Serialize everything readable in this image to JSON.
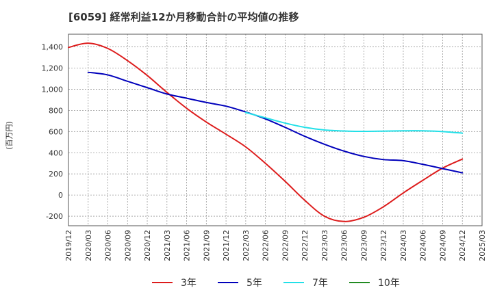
{
  "chart_data": {
    "type": "line",
    "title": "[6059]  経常利益12か月移動合計の平均値の推移",
    "ylabel": "(百万円)",
    "xlabel": "",
    "ylim": [
      -290,
      1520
    ],
    "yticks": [
      {
        "value": 1400,
        "label": "1,400"
      },
      {
        "value": 1200,
        "label": "1,200"
      },
      {
        "value": 1000,
        "label": "1,000"
      },
      {
        "value": 800,
        "label": "800"
      },
      {
        "value": 600,
        "label": "600"
      },
      {
        "value": 400,
        "label": "400"
      },
      {
        "value": 200,
        "label": "200"
      },
      {
        "value": 0,
        "label": "0"
      },
      {
        "value": -200,
        "label": "-200"
      }
    ],
    "xticks": [
      "2019/12",
      "2020/03",
      "2020/06",
      "2020/09",
      "2020/12",
      "2021/03",
      "2021/06",
      "2021/09",
      "2021/12",
      "2022/03",
      "2022/06",
      "2022/09",
      "2022/12",
      "2023/03",
      "2023/06",
      "2023/09",
      "2023/12",
      "2024/03",
      "2024/06",
      "2024/09",
      "2024/12",
      "2025/03"
    ],
    "grid": true,
    "legend_position": "bottom",
    "series": [
      {
        "name": "3年",
        "color": "#dd1c1c",
        "x": [
          "2019/12",
          "2020/03",
          "2020/06",
          "2020/09",
          "2020/12",
          "2021/03",
          "2021/06",
          "2021/09",
          "2021/12",
          "2022/03",
          "2022/06",
          "2022/09",
          "2022/12",
          "2023/03",
          "2023/06",
          "2023/09",
          "2023/12",
          "2024/03",
          "2024/06",
          "2024/09",
          "2024/12"
        ],
        "values": [
          1395,
          1435,
          1385,
          1270,
          1130,
          970,
          820,
          690,
          575,
          455,
          300,
          130,
          -50,
          -200,
          -250,
          -210,
          -110,
          20,
          140,
          255,
          340
        ]
      },
      {
        "name": "5年",
        "color": "#0000bb",
        "x": [
          "2020/03",
          "2020/06",
          "2020/09",
          "2020/12",
          "2021/03",
          "2021/06",
          "2021/09",
          "2021/12",
          "2022/03",
          "2022/06",
          "2022/09",
          "2022/12",
          "2023/03",
          "2023/06",
          "2023/09",
          "2023/12",
          "2024/03",
          "2024/06",
          "2024/09",
          "2024/12"
        ],
        "values": [
          1160,
          1135,
          1075,
          1015,
          955,
          915,
          875,
          840,
          785,
          720,
          640,
          555,
          480,
          415,
          365,
          335,
          325,
          290,
          250,
          210
        ]
      },
      {
        "name": "7年",
        "color": "#22e0e8",
        "x": [
          "2022/03",
          "2022/06",
          "2022/09",
          "2022/12",
          "2023/03",
          "2023/06",
          "2023/09",
          "2023/12",
          "2024/03",
          "2024/06",
          "2024/09",
          "2024/12"
        ],
        "values": [
          780,
          730,
          680,
          640,
          615,
          605,
          602,
          604,
          607,
          607,
          600,
          585
        ]
      },
      {
        "name": "10年",
        "color": "#228b22",
        "x": [],
        "values": []
      }
    ]
  }
}
